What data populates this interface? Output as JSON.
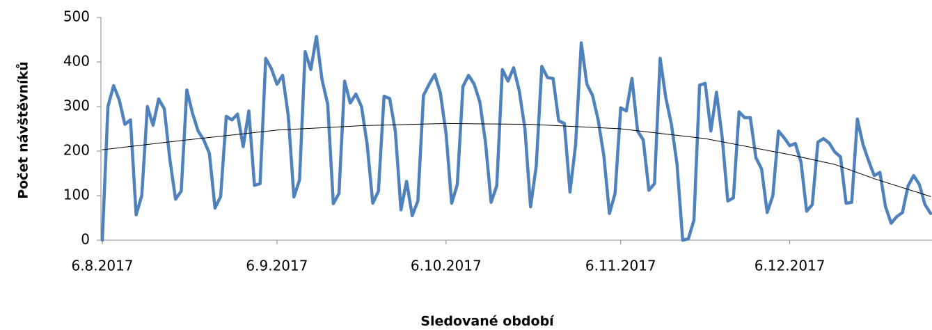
{
  "chart_data": {
    "type": "line",
    "y_label": "Počet návštěvníků",
    "x_label": "Sledované období",
    "x": [
      "2017-08-06",
      "2017-08-07",
      "2017-08-08",
      "2017-08-09",
      "2017-08-10",
      "2017-08-11",
      "2017-08-12",
      "2017-08-13",
      "2017-08-14",
      "2017-08-15",
      "2017-08-16",
      "2017-08-17",
      "2017-08-18",
      "2017-08-19",
      "2017-08-20",
      "2017-08-21",
      "2017-08-22",
      "2017-08-23",
      "2017-08-24",
      "2017-08-25",
      "2017-08-26",
      "2017-08-27",
      "2017-08-28",
      "2017-08-29",
      "2017-08-30",
      "2017-08-31",
      "2017-09-01",
      "2017-09-02",
      "2017-09-03",
      "2017-09-04",
      "2017-09-05",
      "2017-09-06",
      "2017-09-07",
      "2017-09-08",
      "2017-09-09",
      "2017-09-10",
      "2017-09-11",
      "2017-09-12",
      "2017-09-13",
      "2017-09-14",
      "2017-09-15",
      "2017-09-16",
      "2017-09-17",
      "2017-09-18",
      "2017-09-19",
      "2017-09-20",
      "2017-09-21",
      "2017-09-22",
      "2017-09-23",
      "2017-09-24",
      "2017-09-25",
      "2017-09-26",
      "2017-09-27",
      "2017-09-28",
      "2017-09-29",
      "2017-09-30",
      "2017-10-01",
      "2017-10-02",
      "2017-10-03",
      "2017-10-04",
      "2017-10-05",
      "2017-10-06",
      "2017-10-07",
      "2017-10-08",
      "2017-10-09",
      "2017-10-10",
      "2017-10-11",
      "2017-10-12",
      "2017-10-13",
      "2017-10-14",
      "2017-10-15",
      "2017-10-16",
      "2017-10-17",
      "2017-10-18",
      "2017-10-19",
      "2017-10-20",
      "2017-10-21",
      "2017-10-22",
      "2017-10-23",
      "2017-10-24",
      "2017-10-25",
      "2017-10-26",
      "2017-10-27",
      "2017-10-28",
      "2017-10-29",
      "2017-10-30",
      "2017-10-31",
      "2017-11-01",
      "2017-11-02",
      "2017-11-03",
      "2017-11-04",
      "2017-11-05",
      "2017-11-06",
      "2017-11-07",
      "2017-11-08",
      "2017-11-09",
      "2017-11-10",
      "2017-11-11",
      "2017-11-12",
      "2017-11-13",
      "2017-11-14",
      "2017-11-15",
      "2017-11-16",
      "2017-11-17",
      "2017-11-18",
      "2017-11-19",
      "2017-11-20",
      "2017-11-21",
      "2017-11-22",
      "2017-11-23",
      "2017-11-24",
      "2017-11-25",
      "2017-11-26",
      "2017-11-27",
      "2017-11-28",
      "2017-11-29",
      "2017-11-30",
      "2017-12-01",
      "2017-12-02",
      "2017-12-03",
      "2017-12-04",
      "2017-12-05",
      "2017-12-06",
      "2017-12-07",
      "2017-12-08",
      "2017-12-09",
      "2017-12-10",
      "2017-12-11",
      "2017-12-12",
      "2017-12-13",
      "2017-12-14",
      "2017-12-15",
      "2017-12-16",
      "2017-12-17",
      "2017-12-18",
      "2017-12-19",
      "2017-12-20",
      "2017-12-21",
      "2017-12-22",
      "2017-12-23",
      "2017-12-24",
      "2017-12-25",
      "2017-12-26",
      "2017-12-27",
      "2017-12-28",
      "2017-12-29",
      "2017-12-30",
      "2017-12-31"
    ],
    "series": [
      {
        "color": "#4f81bd",
        "values": [
          0,
          300,
          347,
          315,
          260,
          270,
          57,
          100,
          300,
          258,
          317,
          295,
          180,
          92,
          110,
          337,
          285,
          245,
          225,
          195,
          72,
          98,
          278,
          270,
          283,
          210,
          290,
          123,
          127,
          408,
          385,
          350,
          370,
          280,
          97,
          135,
          423,
          383,
          457,
          360,
          305,
          82,
          105,
          357,
          308,
          328,
          300,
          215,
          83,
          110,
          323,
          318,
          245,
          68,
          132,
          55,
          88,
          325,
          350,
          372,
          330,
          240,
          83,
          125,
          345,
          370,
          350,
          310,
          220,
          85,
          122,
          383,
          357,
          387,
          335,
          250,
          75,
          165,
          390,
          365,
          363,
          268,
          262,
          108,
          215,
          443,
          350,
          325,
          270,
          190,
          60,
          105,
          297,
          290,
          363,
          245,
          225,
          112,
          127,
          408,
          320,
          260,
          170,
          0,
          3,
          45,
          348,
          352,
          245,
          332,
          232,
          88,
          95,
          288,
          275,
          275,
          185,
          160,
          62,
          100,
          245,
          230,
          212,
          217,
          175,
          65,
          80,
          220,
          228,
          218,
          198,
          187,
          83,
          85,
          272,
          215,
          178,
          145,
          152,
          75,
          38,
          53,
          62,
          122,
          145,
          125,
          80,
          60
        ]
      }
    ],
    "trendline": {
      "color": "#000000",
      "x": [
        "2017-08-06",
        "2017-08-21",
        "2017-09-06",
        "2017-09-21",
        "2017-10-06",
        "2017-10-21",
        "2017-11-06",
        "2017-11-21",
        "2017-12-06",
        "2017-12-14",
        "2017-12-21",
        "2017-12-31"
      ],
      "values": [
        203,
        225,
        247,
        257,
        262,
        260,
        250,
        228,
        192,
        170,
        138,
        98
      ]
    },
    "xlim": [
      "2017-08-06",
      "2017-12-31"
    ],
    "xticks": [
      {
        "value": "2017-08-06",
        "label": "6.8.2017"
      },
      {
        "value": "2017-09-06",
        "label": "6.9.2017"
      },
      {
        "value": "2017-10-06",
        "label": "6.10.2017"
      },
      {
        "value": "2017-11-06",
        "label": "6.11.2017"
      },
      {
        "value": "2017-12-06",
        "label": "6.12.2017"
      }
    ],
    "ylim": [
      0,
      500
    ],
    "yticks": [
      0,
      100,
      200,
      300,
      400,
      500
    ],
    "grid": false
  }
}
